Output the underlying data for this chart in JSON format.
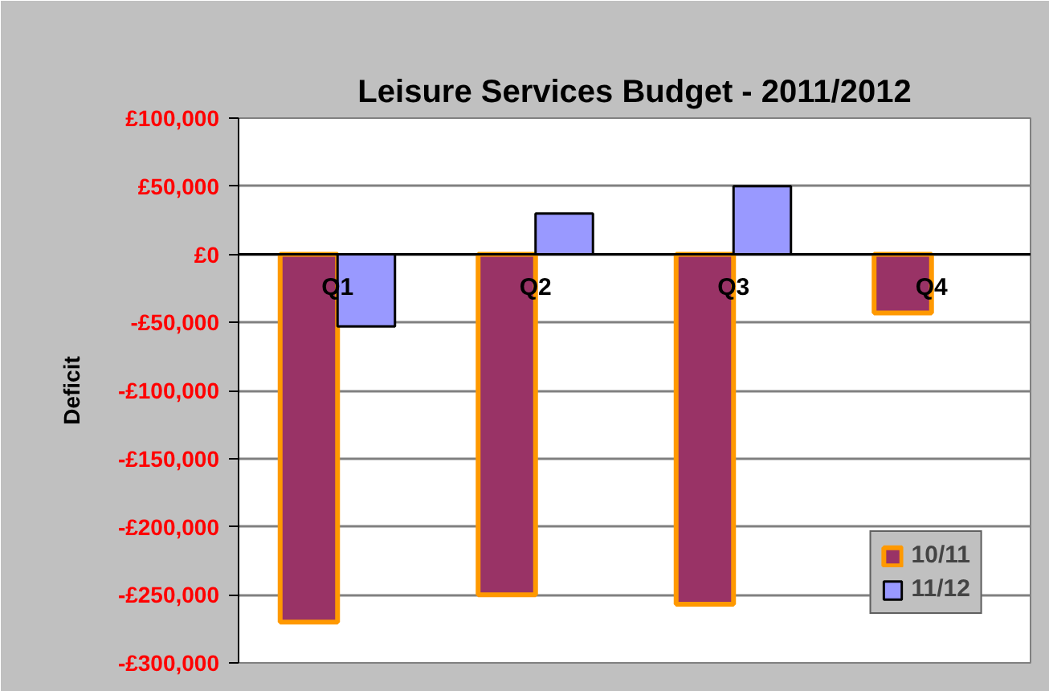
{
  "chart_data": {
    "type": "bar",
    "title": "Leisure Services Budget - 2011/2012",
    "ylabel": "Deficit",
    "categories": [
      "Q1",
      "Q2",
      "Q3",
      "Q4"
    ],
    "series": [
      {
        "name": "10/11",
        "color": "#993366",
        "values": [
          -270000,
          -250000,
          -257000,
          -43000
        ]
      },
      {
        "name": "11/12",
        "color": "#9999ff",
        "values": [
          -53000,
          30000,
          50000,
          null
        ]
      }
    ],
    "ylim": [
      -300000,
      100000
    ],
    "yticks": [
      {
        "value": -300000,
        "label": "-£300,000"
      },
      {
        "value": -250000,
        "label": "-£250,000"
      },
      {
        "value": -200000,
        "label": "-£200,000"
      },
      {
        "value": -150000,
        "label": "-£150,000"
      },
      {
        "value": -100000,
        "label": "-£100,000"
      },
      {
        "value": -50000,
        "label": "-£50,000"
      },
      {
        "value": 0,
        "label": "£0"
      },
      {
        "value": 50000,
        "label": "£50,000"
      },
      {
        "value": 100000,
        "label": "£100,000"
      }
    ],
    "grid": "y",
    "legend": "bottom right"
  }
}
